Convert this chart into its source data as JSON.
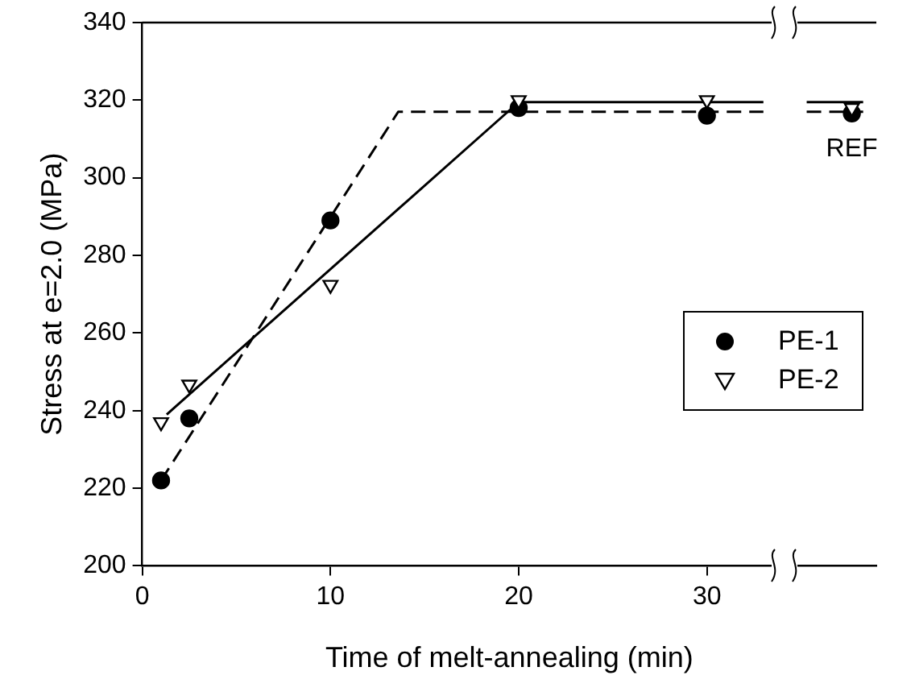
{
  "chart_data": {
    "type": "scatter",
    "xlabel": "Time of melt-annealing (min)",
    "ylabel": "Stress at e=2.0 (MPa)",
    "x": [
      1,
      2.5,
      10,
      20,
      30,
      37.7
    ],
    "xlim": [
      0,
      39
    ],
    "xticks": [
      0,
      10,
      20,
      30
    ],
    "ylim": [
      200,
      340
    ],
    "yticks": [
      200,
      220,
      240,
      260,
      280,
      300,
      320,
      340
    ],
    "grid": false,
    "legend": "right",
    "annotations": [
      {
        "text": "REF",
        "x": 37.7,
        "y": 316.6
      }
    ],
    "series": [
      {
        "name": "PE-1",
        "color": "#000000",
        "marker": "circle",
        "values": [
          222,
          238,
          289,
          318,
          316,
          316.6
        ]
      },
      {
        "name": "PE-2",
        "color": "#000000",
        "marker": "triangle",
        "values": [
          237,
          246.7,
          272.4,
          320,
          320,
          318
        ]
      },
      {
        "type": "line",
        "color": "#000000",
        "line_style": "solid",
        "marker": "none",
        "x": [
          1.3,
          20,
          33,
          34,
          35.3,
          38.3
        ],
        "values": [
          239,
          319.5,
          319.5,
          null,
          319.5,
          319.5
        ]
      },
      {
        "type": "line",
        "color": "#000000",
        "line_style": "dashed",
        "marker": "none",
        "x": [
          1,
          13.6,
          33,
          34,
          35.3,
          38.3
        ],
        "values": [
          222,
          317,
          317,
          null,
          317,
          317
        ]
      }
    ]
  }
}
